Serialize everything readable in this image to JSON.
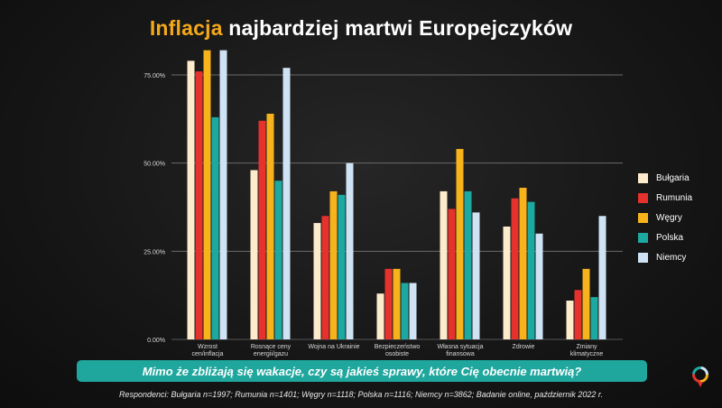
{
  "title": {
    "accent": "Inflacja",
    "rest": " najbardziej martwi Europejczyków"
  },
  "question": "Mimo że zbliżają się wakacje, czy są jakieś sprawy, które Cię obecnie martwią?",
  "footnote": "Respondenci: Bułgaria n=1997; Rumunia n=1401; Węgry n=1118; Polska n=1116; Niemcy n=3862; Badanie online, październik 2022 r.",
  "chart_data": {
    "type": "bar",
    "categories": [
      [
        "Wzrost",
        "cen/inflacja"
      ],
      [
        "Rosnące ceny",
        "energii/gazu"
      ],
      [
        "Wojna na Ukrainie"
      ],
      [
        "Bezpieczeństwo",
        "osobiste"
      ],
      [
        "Własna sytuacja",
        "finansowa"
      ],
      [
        "Zdrowie"
      ],
      [
        "Zmiany",
        "klimatyczne"
      ]
    ],
    "series": [
      {
        "name": "Bułgaria",
        "color": "#fdeccb",
        "values": [
          79,
          48,
          33,
          13,
          42,
          32,
          11
        ]
      },
      {
        "name": "Rumunia",
        "color": "#e5322d",
        "values": [
          76,
          62,
          35,
          20,
          37,
          40,
          14
        ]
      },
      {
        "name": "Węgry",
        "color": "#f6b31b",
        "values": [
          82,
          64,
          42,
          20,
          54,
          43,
          20
        ]
      },
      {
        "name": "Polska",
        "color": "#1ba9a1",
        "values": [
          63,
          45,
          41,
          16,
          42,
          39,
          12
        ]
      },
      {
        "name": "Niemcy",
        "color": "#cfe3f5",
        "values": [
          82,
          77,
          50,
          16,
          36,
          30,
          35
        ]
      }
    ],
    "ylim": [
      0,
      75
    ],
    "yticks": [
      "0.00%",
      "25.00%",
      "50.00%",
      "75.00%"
    ],
    "ytick_values": [
      0,
      25,
      50,
      75
    ],
    "grid": true,
    "legend_position": "right"
  }
}
